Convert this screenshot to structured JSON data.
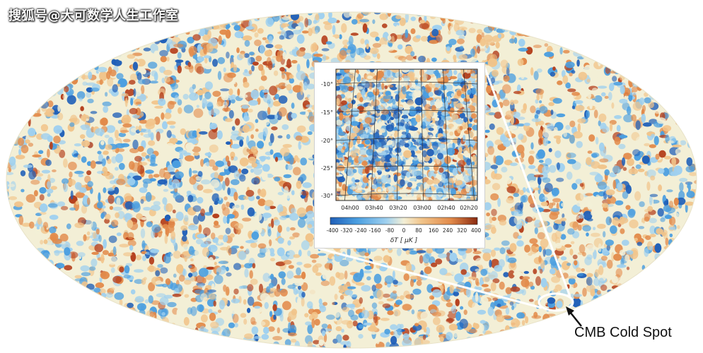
{
  "watermark": "搜狐号@大可数学人生工作室",
  "annotation": {
    "label": "CMB Cold Spot"
  },
  "inset": {
    "y_ticks": [
      "-10°",
      "-15°",
      "-20°",
      "-25°",
      "-30°"
    ],
    "x_ticks": [
      "04h00",
      "03h40",
      "03h20",
      "03h00",
      "02h40",
      "02h20"
    ],
    "colorbar_ticks": [
      "-400",
      "-320",
      "-240",
      "-160",
      "-80",
      "0",
      "80",
      "160",
      "240",
      "320",
      "400"
    ],
    "colorbar_label": "δT [ μK ]"
  },
  "colors": {
    "cold_deep": "#1f5fb8",
    "cold": "#4a9ee0",
    "cool": "#9fd0ef",
    "neutral": "#f3efd6",
    "warm": "#f1c48a",
    "hot": "#e28a4a",
    "hot_deep": "#b5411e"
  }
}
